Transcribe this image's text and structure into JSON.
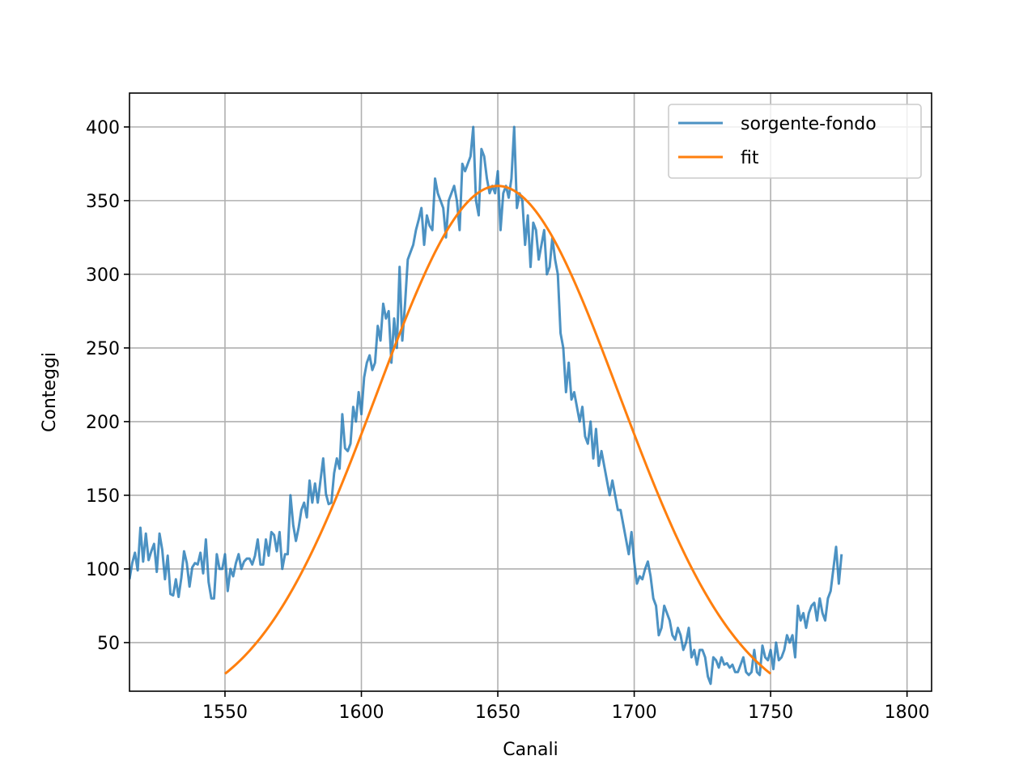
{
  "chart_data": {
    "type": "line",
    "xlabel": "Canali",
    "ylabel": "Conteggi",
    "xlim": [
      1515,
      1809
    ],
    "ylim": [
      17,
      423
    ],
    "xticks": [
      1550,
      1600,
      1650,
      1700,
      1750,
      1800
    ],
    "yticks": [
      50,
      100,
      150,
      200,
      250,
      300,
      350,
      400
    ],
    "xtick_labels": [
      "1550",
      "1600",
      "1650",
      "1700",
      "1750",
      "1800"
    ],
    "ytick_labels": [
      "50",
      "100",
      "150",
      "200",
      "250",
      "300",
      "350",
      "400"
    ],
    "grid": true,
    "legend_position": "top-right",
    "series": [
      {
        "name": "sorgente-fondo",
        "color": "#1f77b4",
        "x_start": 1515,
        "x_step": 1,
        "values": [
          93,
          104,
          111,
          99,
          128,
          105,
          124,
          106,
          112,
          117,
          98,
          124,
          113,
          93,
          109,
          83,
          82,
          93,
          81,
          94,
          112,
          104,
          88,
          101,
          104,
          103,
          111,
          97,
          120,
          91,
          80,
          80,
          110,
          100,
          100,
          110,
          85,
          100,
          95,
          104,
          110,
          100,
          105,
          107,
          107,
          103,
          109,
          120,
          103,
          103,
          120,
          109,
          125,
          123,
          112,
          125,
          100,
          110,
          110,
          150,
          130,
          119,
          128,
          140,
          145,
          135,
          160,
          145,
          158,
          145,
          160,
          175,
          151,
          144,
          145,
          165,
          175,
          168,
          205,
          182,
          180,
          185,
          210,
          200,
          220,
          205,
          230,
          240,
          245,
          235,
          240,
          265,
          255,
          280,
          270,
          275,
          240,
          270,
          250,
          305,
          255,
          280,
          310,
          315,
          320,
          330,
          337,
          345,
          320,
          340,
          333,
          330,
          365,
          355,
          350,
          345,
          325,
          350,
          355,
          360,
          350,
          330,
          375,
          370,
          375,
          380,
          400,
          350,
          340,
          385,
          380,
          365,
          355,
          360,
          355,
          370,
          330,
          355,
          360,
          352,
          365,
          400,
          345,
          355,
          350,
          320,
          340,
          305,
          335,
          330,
          310,
          320,
          330,
          300,
          305,
          325,
          310,
          300,
          260,
          250,
          220,
          240,
          215,
          220,
          210,
          200,
          210,
          190,
          185,
          200,
          175,
          195,
          170,
          180,
          170,
          160,
          150,
          160,
          150,
          140,
          140,
          130,
          120,
          110,
          125,
          105,
          90,
          95,
          93,
          100,
          105,
          95,
          80,
          75,
          55,
          60,
          75,
          70,
          65,
          55,
          52,
          60,
          55,
          45,
          50,
          60,
          40,
          45,
          35,
          45,
          45,
          40,
          27,
          22,
          40,
          38,
          33,
          40,
          35,
          36,
          33,
          35,
          30,
          30,
          35,
          40,
          30,
          28,
          30,
          45,
          30,
          28,
          48,
          40,
          38,
          45,
          32,
          50,
          38,
          40,
          45,
          55,
          50,
          55,
          40,
          75,
          65,
          70,
          60,
          70,
          75,
          77,
          65,
          80,
          70,
          65,
          80,
          85,
          100,
          115,
          90,
          110
        ]
      },
      {
        "name": "fit",
        "color": "#ff7f0e",
        "x_start": 1550,
        "x_end": 1750,
        "model": "gaussian",
        "amplitude": 360,
        "center": 1650,
        "sigma": 44.5
      }
    ]
  }
}
